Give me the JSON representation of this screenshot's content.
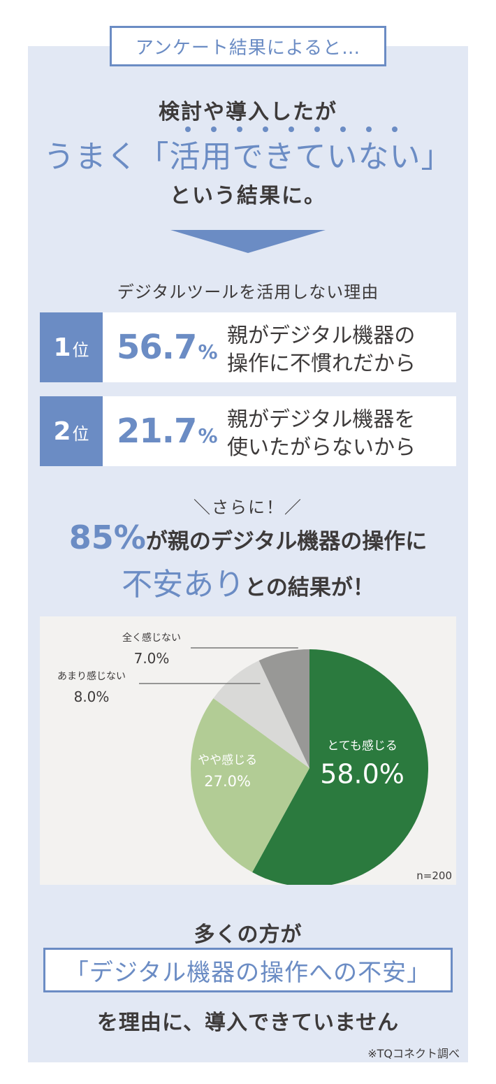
{
  "survey_label": "アンケート結果によると…",
  "headline": {
    "line1": "検討や導入したが",
    "line2": "うまく「活用できていない」",
    "line3": "という結果に。"
  },
  "reasons": {
    "title": "デジタルツールを活用しない理由",
    "items": [
      {
        "rank": "1",
        "rank_suffix": "位",
        "percent": "56.7",
        "unit": "%",
        "line1": "親がデジタル機器の",
        "line2": "操作に不慣れだから"
      },
      {
        "rank": "2",
        "rank_suffix": "位",
        "percent": "21.7",
        "unit": "%",
        "line1": "親がデジタル機器を",
        "line2": "使いたがらないから"
      }
    ]
  },
  "finding": {
    "intro": "＼さらに！／",
    "big_percent": "85%",
    "line1_rest": "が親のデジタル機器の操作に",
    "highlight": "不安あり",
    "line2_rest": "との結果が！"
  },
  "chart_data": {
    "type": "pie",
    "slices": [
      {
        "label": "とても感じる",
        "value": 58.0,
        "value_label": "58.0%",
        "color": "#2b7a3e"
      },
      {
        "label": "やや感じる",
        "value": 27.0,
        "value_label": "27.0%",
        "color": "#b2cc95"
      },
      {
        "label": "あまり感じない",
        "value": 8.0,
        "value_label": "8.0%",
        "color": "#d9d9d7"
      },
      {
        "label": "全く感じない",
        "value": 7.0,
        "value_label": "7.0%",
        "color": "#989896"
      }
    ],
    "note": "n=200"
  },
  "conclusion": {
    "line1": "多くの方が",
    "boxed": "「デジタル機器の操作への不安」",
    "line3": "を理由に、導入できていません"
  },
  "source": "※TQコネクト調べ",
  "colors": {
    "accent": "#6b8cc4",
    "panel": "#e2e8f4",
    "text": "#3d3a3a"
  }
}
